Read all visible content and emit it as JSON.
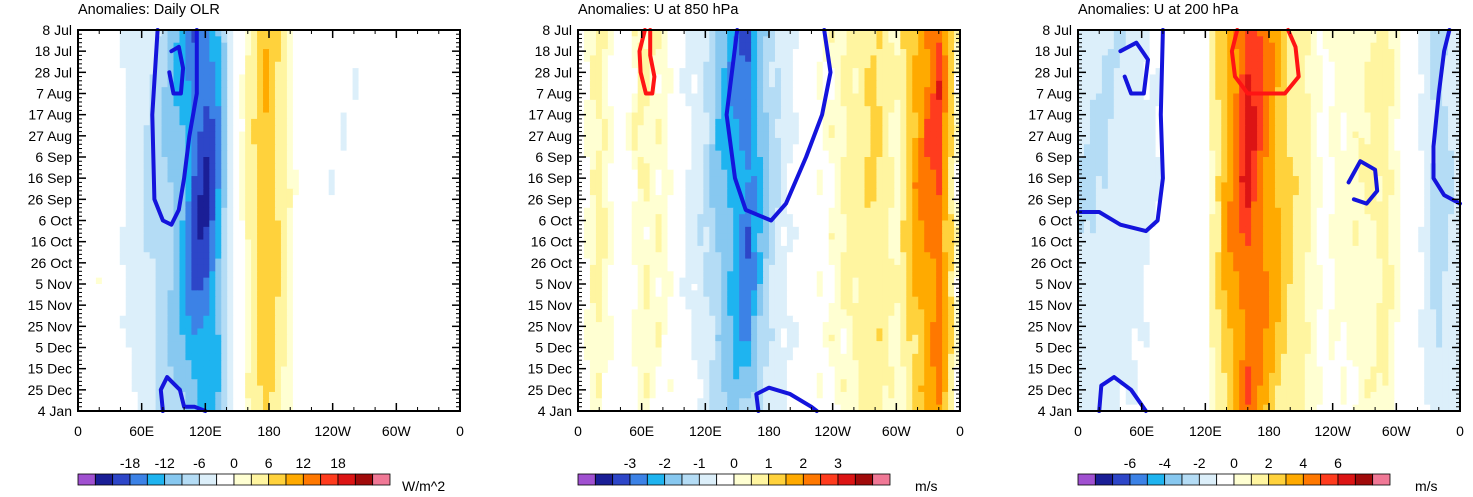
{
  "palette": {
    "colors": [
      "#a050d0",
      "#1a1e96",
      "#2d46c8",
      "#3c82e6",
      "#1eb4f0",
      "#87c8f0",
      "#b4dcf5",
      "#dceffa",
      "#ffffff",
      "#ffffd2",
      "#fff5a0",
      "#ffd23c",
      "#ffaa00",
      "#ff7800",
      "#ff3c1e",
      "#dc1414",
      "#a00a0a",
      "#f07896"
    ],
    "contour_negative": "#1414dc",
    "contour_positive": "#ff1414"
  },
  "shared_axes": {
    "x_ticks": [
      "0",
      "60E",
      "120E",
      "180",
      "120W",
      "60W",
      "0"
    ],
    "x_tick_degrees": [
      0,
      60,
      120,
      180,
      240,
      300,
      360
    ],
    "xlim": [
      0,
      360
    ],
    "y_ticks": [
      "8 Jul",
      "18 Jul",
      "28 Jul",
      "7 Aug",
      "17 Aug",
      "27 Aug",
      "6 Sep",
      "16 Sep",
      "26 Sep",
      "6 Oct",
      "16 Oct",
      "26 Oct",
      "5 Nov",
      "15 Nov",
      "25 Nov",
      "5 Dec",
      "15 Dec",
      "25 Dec",
      "4 Jan"
    ],
    "y_tick_days": [
      0,
      10,
      20,
      30,
      40,
      50,
      60,
      70,
      80,
      90,
      100,
      110,
      120,
      130,
      140,
      150,
      160,
      170,
      180
    ],
    "ylim_days": [
      0,
      180
    ]
  },
  "chart_data": [
    {
      "type": "heatmap",
      "title": "Anomalies: Daily OLR",
      "units": "W/m^2",
      "colorbar_labels": [
        "-18",
        "-12",
        "-6",
        "0",
        "6",
        "12",
        "18"
      ],
      "colorbar_levels": [
        -18,
        -12,
        -6,
        0,
        6,
        12,
        18
      ],
      "field": {
        "lon": [
          0,
          20,
          40,
          60,
          80,
          100,
          110,
          120,
          130,
          150,
          170,
          180,
          190,
          210,
          240,
          270,
          300,
          330,
          360
        ],
        "values": [
          -1,
          1,
          -2,
          -4,
          -6,
          -10,
          -14,
          -15,
          -12,
          0,
          5,
          7,
          4,
          0,
          -2,
          -2,
          -1,
          -1,
          -1
        ],
        "peak_day": 60,
        "decay": 0.4
      },
      "contours": [
        {
          "sign": "negative",
          "points": [
            [
              75,
              0
            ],
            [
              70,
              40
            ],
            [
              72,
              80
            ],
            [
              80,
              90
            ],
            [
              88,
              92
            ],
            [
              95,
              85
            ],
            [
              100,
              70
            ],
            [
              105,
              50
            ],
            [
              112,
              30
            ],
            [
              112,
              0
            ]
          ]
        },
        {
          "sign": "negative",
          "points": [
            [
              88,
              10
            ],
            [
              95,
              8
            ],
            [
              99,
              18
            ],
            [
              97,
              30
            ],
            [
              90,
              30
            ],
            [
              86,
              20
            ]
          ]
        },
        {
          "sign": "negative",
          "points": [
            [
              80,
              180
            ],
            [
              78,
              170
            ],
            [
              84,
              164
            ],
            [
              96,
              170
            ],
            [
              100,
              178
            ],
            [
              110,
              178
            ],
            [
              120,
              180
            ]
          ]
        }
      ]
    },
    {
      "type": "heatmap",
      "title": "Anomalies: U at 850 hPa",
      "units": "m/s",
      "colorbar_labels": [
        "-3",
        "-2",
        "-1",
        "0",
        "1",
        "2",
        "3"
      ],
      "colorbar_levels": [
        -3,
        -2,
        -1,
        0,
        1,
        2,
        3
      ],
      "field": {
        "lon": [
          0,
          20,
          40,
          60,
          80,
          100,
          120,
          140,
          160,
          180,
          200,
          220,
          250,
          280,
          300,
          320,
          340,
          360
        ],
        "values": [
          0,
          0.5,
          0,
          0.4,
          0.3,
          -0.3,
          -0.8,
          -1.6,
          -2.2,
          -1,
          -0.4,
          0,
          0.4,
          0.8,
          0.3,
          1.4,
          2,
          0
        ],
        "peak_day": 45,
        "decay": 0.4
      },
      "contours": [
        {
          "sign": "positive",
          "points": [
            [
              63,
              0
            ],
            [
              58,
              10
            ],
            [
              59,
              20
            ],
            [
              64,
              30
            ],
            [
              70,
              30
            ],
            [
              72,
              22
            ],
            [
              68,
              12
            ],
            [
              68,
              0
            ]
          ]
        },
        {
          "sign": "negative",
          "points": [
            [
              150,
              0
            ],
            [
              140,
              40
            ],
            [
              148,
              70
            ],
            [
              158,
              85
            ],
            [
              182,
              90
            ],
            [
              196,
              82
            ],
            [
              215,
              60
            ],
            [
              230,
              40
            ],
            [
              238,
              20
            ],
            [
              232,
              0
            ]
          ]
        },
        {
          "sign": "negative",
          "points": [
            [
              170,
              180
            ],
            [
              168,
              172
            ],
            [
              180,
              169
            ],
            [
              200,
              172
            ],
            [
              220,
              178
            ],
            [
              225,
              180
            ]
          ]
        }
      ]
    },
    {
      "type": "heatmap",
      "title": "Anomalies: U at 200 hPa",
      "units": "m/s",
      "colorbar_labels": [
        "-6",
        "-4",
        "-2",
        "0",
        "2",
        "4",
        "6"
      ],
      "colorbar_levels": [
        -6,
        -4,
        -2,
        0,
        2,
        4,
        6
      ],
      "field": {
        "lon": [
          0,
          30,
          60,
          90,
          120,
          140,
          160,
          180,
          200,
          230,
          260,
          290,
          320,
          340,
          360
        ],
        "values": [
          -1.5,
          -1.5,
          -1,
          -0.4,
          0,
          2.5,
          4.5,
          3,
          1.5,
          0.3,
          0.6,
          1,
          -0.5,
          -2,
          -1
        ],
        "peak_day": 40,
        "decay": 0.3
      },
      "contours": [
        {
          "sign": "negative",
          "points": [
            [
              40,
              10
            ],
            [
              55,
              6
            ],
            [
              66,
              14
            ],
            [
              62,
              30
            ],
            [
              50,
              30
            ],
            [
              44,
              22
            ]
          ]
        },
        {
          "sign": "positive",
          "points": [
            [
              150,
              0
            ],
            [
              145,
              10
            ],
            [
              148,
              22
            ],
            [
              160,
              30
            ],
            [
              195,
              30
            ],
            [
              208,
              22
            ],
            [
              205,
              8
            ],
            [
              198,
              0
            ]
          ]
        },
        {
          "sign": "negative",
          "points": [
            [
              255,
              72
            ],
            [
              266,
              62
            ],
            [
              280,
              66
            ],
            [
              282,
              76
            ],
            [
              272,
              82
            ],
            [
              260,
              80
            ]
          ]
        },
        {
          "sign": "negative",
          "points": [
            [
              0,
              86
            ],
            [
              20,
              86
            ],
            [
              40,
              92
            ],
            [
              64,
              95
            ],
            [
              75,
              90
            ],
            [
              80,
              70
            ],
            [
              78,
              40
            ],
            [
              80,
              0
            ]
          ]
        },
        {
          "sign": "negative",
          "points": [
            [
              20,
              180
            ],
            [
              22,
              168
            ],
            [
              34,
              164
            ],
            [
              50,
              170
            ],
            [
              64,
              180
            ]
          ]
        },
        {
          "sign": "negative",
          "points": [
            [
              360,
              82
            ],
            [
              345,
              78
            ],
            [
              335,
              70
            ],
            [
              335,
              55
            ],
            [
              340,
              30
            ],
            [
              345,
              10
            ],
            [
              350,
              0
            ]
          ]
        }
      ]
    }
  ]
}
